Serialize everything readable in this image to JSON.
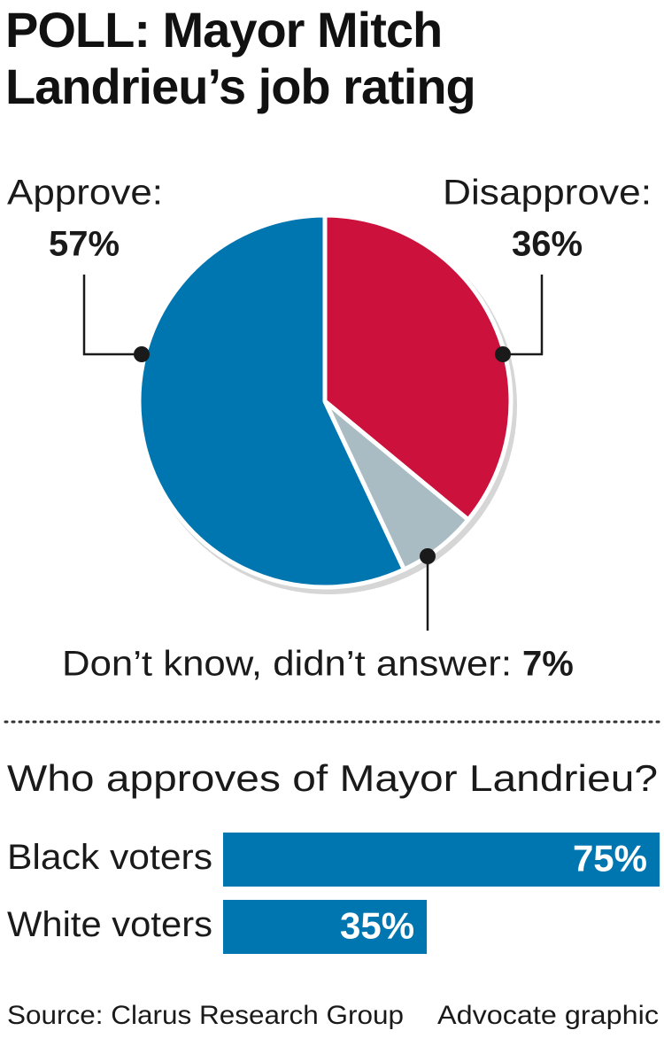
{
  "title": "POLL: Mayor Mitch Landrieu’s job rating",
  "chart_data": [
    {
      "type": "pie",
      "categories": [
        "Disapprove:",
        "Don’t know, didn’t answer:",
        "Approve:"
      ],
      "values": [
        36,
        7,
        57
      ],
      "value_labels": [
        "36%",
        "7%",
        "57%"
      ],
      "colors": [
        "#cc113d",
        "#a9bcc4",
        "#0076b0"
      ]
    },
    {
      "type": "bar",
      "title": "Who approves of Mayor Landrieu?",
      "categories": [
        "Black voters",
        "White voters"
      ],
      "values": [
        75,
        35
      ],
      "value_labels": [
        "75%",
        "35%"
      ],
      "color": "#0076b0"
    }
  ],
  "source": "Source: Clarus Research Group",
  "credit": "Advocate graphic"
}
